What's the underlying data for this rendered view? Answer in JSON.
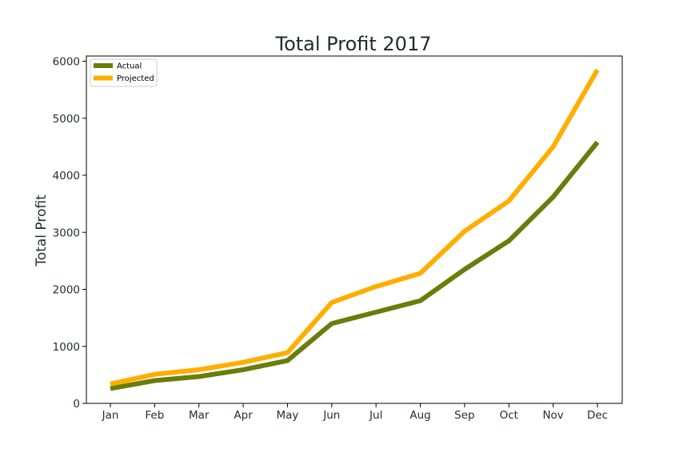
{
  "chart_data": {
    "type": "line",
    "title": "Total Profit 2017",
    "xlabel": "",
    "ylabel": "Total Profit",
    "categories": [
      "Jan",
      "Feb",
      "Mar",
      "Apr",
      "May",
      "Jun",
      "Jul",
      "Aug",
      "Sep",
      "Oct",
      "Nov",
      "Dec"
    ],
    "series": [
      {
        "name": "Actual",
        "color": "#6b7c0b",
        "values": [
          260,
          400,
          470,
          590,
          750,
          1400,
          1600,
          1800,
          2350,
          2850,
          3620,
          4580
        ]
      },
      {
        "name": "Projected",
        "color": "#ffae00",
        "values": [
          340,
          510,
          590,
          720,
          890,
          1770,
          2050,
          2280,
          3020,
          3550,
          4500,
          5850
        ]
      }
    ],
    "ylim": [
      0,
      6000
    ],
    "yticks": [
      0,
      1000,
      2000,
      3000,
      4000,
      5000,
      6000
    ],
    "grid": false,
    "legend_position": "top-left"
  }
}
